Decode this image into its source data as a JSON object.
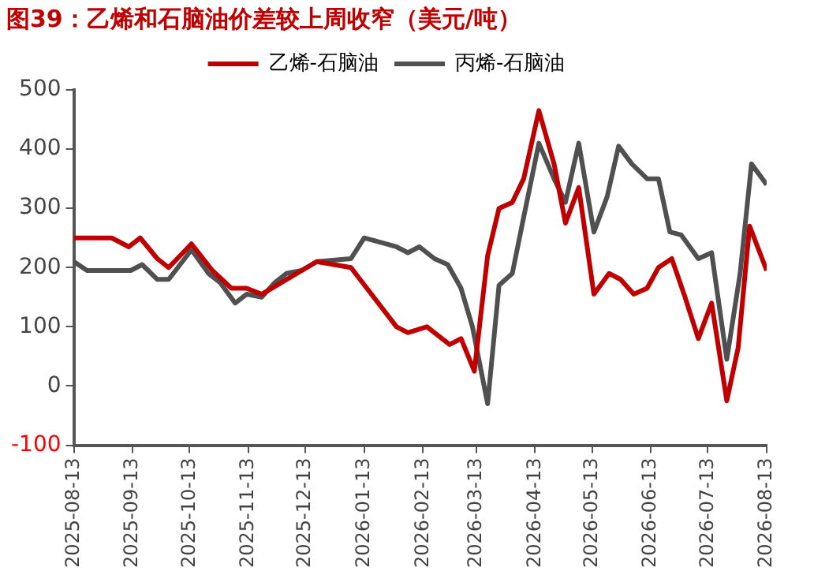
{
  "chart_data": {
    "type": "line",
    "title": "图39：乙烯和石脑油价差较上周收窄（美元/吨）",
    "series": [
      {
        "name": "乙烯-石脑油",
        "color": "#c00000",
        "x": [
          "2025-08-13",
          "2025-09-02",
          "2025-09-11",
          "2025-09-17",
          "2025-09-26",
          "2025-10-02",
          "2025-10-14",
          "2025-10-25",
          "2025-11-04",
          "2025-11-12",
          "2025-11-20",
          "2025-12-19",
          "2026-01-06",
          "2026-01-30",
          "2026-02-05",
          "2026-02-15",
          "2026-02-27",
          "2026-03-05",
          "2026-03-12",
          "2026-03-19",
          "2026-03-25",
          "2026-04-01",
          "2026-04-07",
          "2026-04-15",
          "2026-04-23",
          "2026-04-29",
          "2026-05-06",
          "2026-05-14",
          "2026-05-22",
          "2026-05-28",
          "2026-06-04",
          "2026-06-11",
          "2026-06-17",
          "2026-06-24",
          "2026-07-01",
          "2026-07-08",
          "2026-07-15",
          "2026-07-23",
          "2026-07-29",
          "2026-08-04",
          "2026-08-13"
        ],
        "values": [
          250,
          250,
          235,
          250,
          215,
          200,
          240,
          195,
          165,
          165,
          155,
          210,
          200,
          100,
          90,
          100,
          70,
          80,
          25,
          220,
          300,
          310,
          350,
          465,
          375,
          275,
          335,
          155,
          190,
          180,
          155,
          165,
          200,
          215,
          150,
          80,
          140,
          -25,
          65,
          270,
          195
        ]
      },
      {
        "name": "丙烯-石脑油",
        "color": "#505050",
        "x": [
          "2025-08-13",
          "2025-08-20",
          "2025-09-12",
          "2025-09-18",
          "2025-09-26",
          "2025-10-02",
          "2025-10-14",
          "2025-10-23",
          "2025-10-29",
          "2025-11-06",
          "2025-11-12",
          "2025-11-20",
          "2025-11-27",
          "2025-12-03",
          "2025-12-11",
          "2025-12-19",
          "2026-01-06",
          "2026-01-13",
          "2026-01-30",
          "2026-02-05",
          "2026-02-11",
          "2026-02-19",
          "2026-02-26",
          "2026-03-05",
          "2026-03-11",
          "2026-03-19",
          "2026-03-25",
          "2026-04-01",
          "2026-04-07",
          "2026-04-15",
          "2026-04-23",
          "2026-04-29",
          "2026-05-06",
          "2026-05-14",
          "2026-05-21",
          "2026-05-27",
          "2026-06-03",
          "2026-06-11",
          "2026-06-17",
          "2026-06-23",
          "2026-06-29",
          "2026-07-08",
          "2026-07-15",
          "2026-07-23",
          "2026-07-30",
          "2026-08-05",
          "2026-08-13"
        ],
        "values": [
          210,
          195,
          195,
          205,
          180,
          180,
          230,
          190,
          175,
          140,
          155,
          150,
          175,
          190,
          195,
          210,
          215,
          250,
          235,
          225,
          235,
          215,
          205,
          165,
          100,
          -30,
          170,
          190,
          285,
          410,
          350,
          310,
          410,
          260,
          320,
          405,
          375,
          350,
          350,
          260,
          255,
          215,
          225,
          45,
          190,
          375,
          340
        ]
      }
    ],
    "ylim": [
      -100,
      500
    ],
    "yticks": [
      -100,
      0,
      100,
      200,
      300,
      400,
      500
    ],
    "xlim": [
      "2025-08-13",
      "2026-08-13"
    ],
    "xticks": [
      "2025-08-13",
      "2025-09-13",
      "2025-10-13",
      "2025-11-13",
      "2025-12-13",
      "2026-01-13",
      "2026-02-13",
      "2026-03-13",
      "2026-04-13",
      "2026-05-13",
      "2026-06-13",
      "2026-07-13",
      "2026-08-13"
    ],
    "grid": false,
    "legend": "top",
    "marker": "none",
    "line_style": "solid"
  }
}
